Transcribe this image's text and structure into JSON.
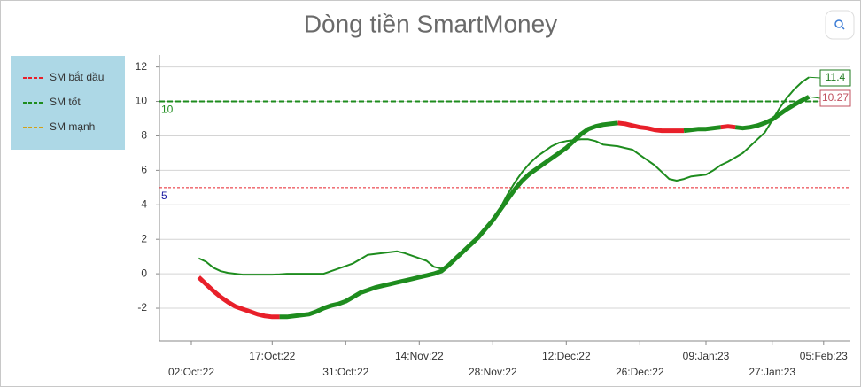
{
  "chart_data": {
    "type": "line",
    "title": "Dòng tiền SmartMoney",
    "categories": [
      "02:Oct:22",
      null,
      null,
      null,
      null,
      null,
      null,
      null,
      null,
      null,
      null,
      "17:Oct:22",
      null,
      null,
      null,
      null,
      null,
      null,
      null,
      null,
      null,
      "31:Oct:22",
      null,
      null,
      null,
      null,
      null,
      null,
      null,
      null,
      null,
      "14:Nov:22",
      null,
      null,
      null,
      null,
      null,
      null,
      null,
      null,
      null,
      "28:Nov:22",
      null,
      null,
      null,
      null,
      null,
      null,
      null,
      null,
      null,
      "12:Dec:22",
      null,
      null,
      null,
      null,
      null,
      null,
      null,
      null,
      null,
      "26:Dec:22",
      null,
      null,
      null,
      null,
      null,
      null,
      null,
      null,
      "09:Jan:23",
      null,
      null,
      null,
      null,
      null,
      null,
      null,
      null,
      "27:Jan:23",
      null,
      null,
      null,
      null,
      null,
      null,
      "05:Feb:23"
    ],
    "series": [
      {
        "color": "#1e8c1e",
        "width": 2,
        "end_label": true,
        "label_color": "#1e7a1e",
        "values": [
          null,
          0.9,
          0.7,
          0.35,
          0.15,
          0.05,
          0.0,
          -0.05,
          -0.05,
          -0.05,
          -0.05,
          -0.05,
          -0.03,
          0.0,
          0.0,
          0.0,
          0.0,
          0.0,
          0.0,
          0.15,
          0.3,
          0.45,
          0.6,
          0.85,
          1.1,
          1.15,
          1.2,
          1.25,
          1.3,
          1.2,
          1.05,
          0.9,
          0.75,
          0.4,
          0.3,
          0.5,
          0.9,
          1.3,
          1.6,
          2.0,
          2.5,
          3.1,
          3.8,
          4.6,
          5.3,
          5.9,
          6.4,
          6.8,
          7.1,
          7.4,
          7.6,
          7.7,
          7.75,
          7.8,
          7.8,
          7.7,
          7.5,
          7.45,
          7.4,
          7.3,
          7.2,
          6.9,
          6.6,
          6.3,
          5.9,
          5.5,
          5.4,
          5.5,
          5.65,
          5.7,
          5.75,
          6.0,
          6.3,
          6.5,
          6.75,
          7.0,
          7.4,
          7.8,
          8.2,
          8.9,
          9.6,
          10.2,
          10.7,
          11.1,
          11.4,
          null,
          null
        ]
      },
      {
        "color": "#e8202a",
        "width": 5,
        "values": [
          null,
          -0.2,
          -0.6,
          -1.0,
          -1.35,
          -1.65,
          -1.9,
          -2.05,
          -2.2,
          -2.35,
          -2.45,
          -2.5,
          -2.5,
          null,
          null,
          null,
          null,
          null,
          null,
          null,
          null,
          null,
          null,
          null,
          null,
          null,
          null,
          null,
          null,
          null,
          null,
          null,
          null,
          null,
          null,
          null,
          null,
          null,
          null,
          null,
          null,
          null,
          null,
          null,
          null,
          null,
          null,
          null,
          null,
          null,
          null,
          null,
          null,
          null,
          null,
          null,
          null,
          null,
          8.75,
          8.7,
          8.6,
          8.5,
          8.45,
          8.35,
          8.3,
          8.3,
          8.3,
          8.3,
          null,
          null,
          null,
          null,
          8.5,
          8.55,
          8.5,
          null,
          null,
          null,
          null,
          null,
          null,
          null,
          null,
          null,
          null,
          null,
          null
        ]
      },
      {
        "color": "#1e8c1e",
        "width": 5,
        "end_label": true,
        "label_color": "#c0505f",
        "values": [
          null,
          null,
          null,
          null,
          null,
          null,
          null,
          null,
          null,
          null,
          null,
          null,
          -2.5,
          -2.5,
          -2.45,
          -2.4,
          -2.35,
          -2.2,
          -2.0,
          -1.85,
          -1.75,
          -1.6,
          -1.35,
          -1.1,
          -0.95,
          -0.8,
          -0.7,
          -0.6,
          -0.5,
          -0.4,
          -0.3,
          -0.2,
          -0.1,
          0.0,
          0.15,
          0.5,
          0.9,
          1.3,
          1.7,
          2.1,
          2.6,
          3.1,
          3.7,
          4.3,
          4.9,
          5.4,
          5.8,
          6.1,
          6.4,
          6.7,
          7.0,
          7.3,
          7.7,
          8.1,
          8.4,
          8.55,
          8.65,
          8.7,
          8.75,
          null,
          null,
          null,
          null,
          null,
          null,
          null,
          null,
          8.3,
          8.35,
          8.4,
          8.4,
          8.45,
          8.5,
          null,
          8.5,
          8.45,
          8.5,
          8.6,
          8.75,
          8.95,
          9.25,
          9.55,
          9.8,
          10.05,
          10.27,
          null,
          null
        ]
      }
    ],
    "reference_lines": [
      {
        "name": "SM bắt đầu",
        "value": 5,
        "color": "#e8202a",
        "dash": "dotted"
      },
      {
        "name": "SM tốt",
        "value": 10,
        "color": "#1e8c1e",
        "dash": "dashed"
      },
      {
        "name": "SM mạnh",
        "color": "#d4a017",
        "dash": "dashed"
      }
    ],
    "ylim": [
      -3.9,
      12.7
    ],
    "yticks": [
      -2,
      0,
      2,
      4,
      6,
      8,
      10,
      12
    ],
    "grid": true
  }
}
